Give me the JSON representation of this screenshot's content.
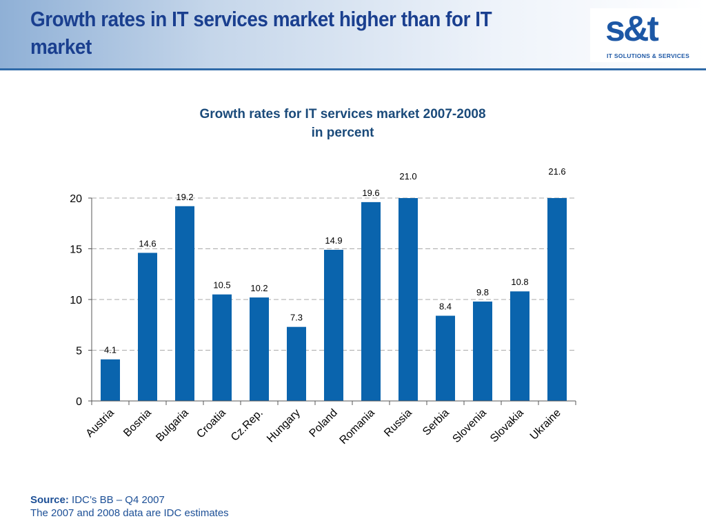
{
  "slide": {
    "title": "Growth rates in IT services market higher than for IT market"
  },
  "logo": {
    "mark": "s&t",
    "tagline": "IT SOLUTIONS & SERVICES"
  },
  "chart_title": {
    "line1": "Growth rates for IT services market 2007-2008",
    "line2": "in percent"
  },
  "chart_data": {
    "type": "bar",
    "title": "Growth rates for IT services market 2007-2008 in percent",
    "categories": [
      "Austria",
      "Bosnia",
      "Bulgaria",
      "Croatia",
      "Cz.Rep.",
      "Hungary",
      "Poland",
      "Romania",
      "Russia",
      "Serbia",
      "Slovenia",
      "Slovakia",
      "Ukraine"
    ],
    "values": [
      4.1,
      14.6,
      19.2,
      10.5,
      10.2,
      7.3,
      14.9,
      19.6,
      21.0,
      8.4,
      9.8,
      10.8,
      21.6
    ],
    "value_labels": [
      "4.1",
      "14.6",
      "19.2",
      "10.5",
      "10.2",
      "7.3",
      "14.9",
      "19.6",
      "21.0",
      "8.4",
      "9.8",
      "10.8",
      "21.6"
    ],
    "ylim": [
      0,
      20
    ],
    "yticks": [
      0,
      5,
      10,
      15,
      20
    ],
    "grid": true,
    "bar_color": "#0a64ad",
    "xlabel": "",
    "ylabel": ""
  },
  "footer": {
    "source_label": "Source:",
    "source_text": "IDC’s BB – Q4 2007",
    "note": "The 2007 and 2008 data are IDC estimates"
  }
}
